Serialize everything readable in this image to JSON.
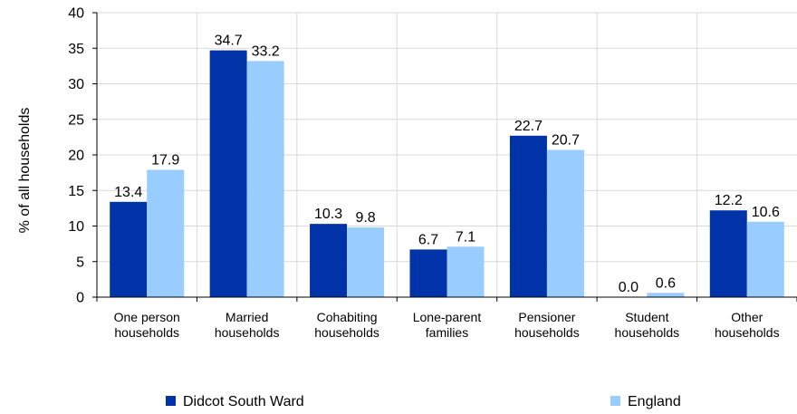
{
  "chart_data": {
    "type": "bar",
    "ylabel": "% of all households",
    "ylim": [
      0,
      40
    ],
    "yticks": [
      0,
      5,
      10,
      15,
      20,
      25,
      30,
      35,
      40
    ],
    "categories": [
      [
        "One person",
        "households"
      ],
      [
        "Married",
        "households"
      ],
      [
        "Cohabiting",
        "households"
      ],
      [
        "Lone-parent",
        "families"
      ],
      [
        "Pensioner",
        "households"
      ],
      [
        "Student",
        "households"
      ],
      [
        "Other",
        "households"
      ]
    ],
    "series": [
      {
        "name": "Didcot South Ward",
        "color": "#0033a8",
        "values": [
          13.4,
          34.7,
          10.3,
          6.7,
          22.7,
          0.0,
          12.2
        ],
        "labels": [
          "13.4",
          "34.7",
          "10.3",
          "6.7",
          "22.7",
          "0.0",
          "12.2"
        ]
      },
      {
        "name": "England",
        "color": "#99ccff",
        "values": [
          17.9,
          33.2,
          9.8,
          7.1,
          20.7,
          0.6,
          10.6
        ],
        "labels": [
          "17.9",
          "33.2",
          "9.8",
          "7.1",
          "20.7",
          "0.6",
          "10.6"
        ]
      }
    ],
    "grid": true,
    "gridColor": "#d9d9d9",
    "legend_position": "bottom"
  }
}
